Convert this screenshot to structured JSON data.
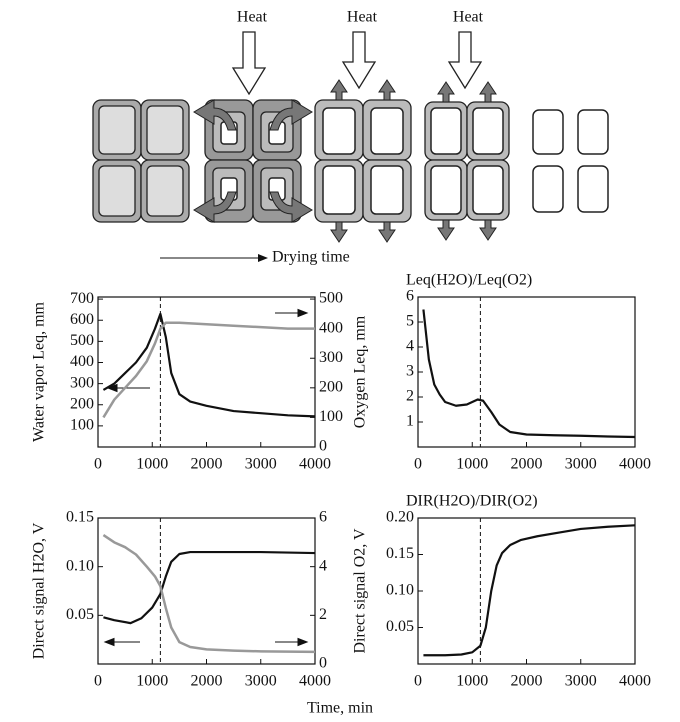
{
  "diagram": {
    "heat_labels": [
      "Heat",
      "Heat",
      "Heat"
    ],
    "arrow_label": "Drying time"
  },
  "shared_xlabel": "Time, min",
  "chart_data": [
    {
      "type": "line",
      "ylabel": "Water vapor Leq, mm",
      "y2label": "Oxygen Leq, mm",
      "xlim": [
        0,
        4000
      ],
      "xticks": [
        0,
        1000,
        2000,
        3000,
        4000
      ],
      "ylim": [
        0,
        710
      ],
      "yticks": [
        100,
        200,
        300,
        400,
        500,
        600,
        700
      ],
      "y2lim": [
        0,
        507
      ],
      "y2ticks": [
        0,
        100,
        200,
        300,
        400,
        500
      ],
      "vline": 1150,
      "series": [
        {
          "color": "#111111",
          "x": [
            100,
            300,
            500,
            700,
            900,
            1050,
            1150,
            1250,
            1350,
            1500,
            1700,
            2000,
            2500,
            3000,
            3500,
            4000
          ],
          "values": [
            270,
            300,
            350,
            400,
            470,
            560,
            630,
            520,
            350,
            250,
            215,
            195,
            170,
            160,
            150,
            145
          ]
        },
        {
          "color": "#999999",
          "axis": "y2",
          "x": [
            100,
            300,
            500,
            700,
            900,
            1050,
            1150,
            1250,
            1500,
            2000,
            2500,
            3000,
            3500,
            4000
          ],
          "values": [
            100,
            160,
            200,
            240,
            290,
            350,
            400,
            420,
            420,
            415,
            410,
            405,
            400,
            400
          ]
        }
      ]
    },
    {
      "type": "line",
      "title": "Leq(H2O)/Leq(O2)",
      "xlim": [
        0,
        4000
      ],
      "xticks": [
        0,
        1000,
        2000,
        3000,
        4000
      ],
      "ylim": [
        0,
        6
      ],
      "yticks": [
        1,
        2,
        3,
        4,
        5,
        6
      ],
      "vline": 1150,
      "series": [
        {
          "color": "#111111",
          "x": [
            100,
            200,
            300,
            400,
            500,
            700,
            900,
            1100,
            1200,
            1350,
            1500,
            1700,
            2000,
            2500,
            3000,
            3500,
            4000
          ],
          "values": [
            5.5,
            3.5,
            2.5,
            2.1,
            1.8,
            1.65,
            1.7,
            1.9,
            1.85,
            1.4,
            0.9,
            0.6,
            0.5,
            0.47,
            0.45,
            0.42,
            0.4
          ]
        }
      ]
    },
    {
      "type": "line",
      "ylabel": "Direct signal H2O, V",
      "y2label": "Direct signal O2, V",
      "xlim": [
        0,
        4000
      ],
      "xticks": [
        0,
        1000,
        2000,
        3000,
        4000
      ],
      "ylim": [
        0,
        0.15
      ],
      "yticks": [
        {
          "value": 0.05,
          "label": "0.05"
        },
        {
          "value": 0.1,
          "label": "0.10"
        },
        {
          "value": 0.15,
          "label": "0.15"
        }
      ],
      "y2lim": [
        0,
        6
      ],
      "y2ticks": [
        0,
        2,
        4,
        6
      ],
      "vline": 1150,
      "series": [
        {
          "color": "#111111",
          "x": [
            100,
            300,
            600,
            800,
            1000,
            1150,
            1250,
            1350,
            1500,
            1700,
            2000,
            3000,
            4000
          ],
          "values": [
            0.048,
            0.045,
            0.042,
            0.047,
            0.058,
            0.072,
            0.09,
            0.105,
            0.113,
            0.115,
            0.115,
            0.115,
            0.114
          ]
        },
        {
          "color": "#999999",
          "axis": "y2",
          "x": [
            100,
            300,
            500,
            700,
            900,
            1050,
            1150,
            1250,
            1350,
            1500,
            1700,
            2000,
            2500,
            3000,
            4000
          ],
          "values": [
            5.3,
            5.0,
            4.8,
            4.5,
            4.0,
            3.6,
            3.2,
            2.3,
            1.5,
            0.9,
            0.7,
            0.6,
            0.55,
            0.52,
            0.5
          ]
        }
      ]
    },
    {
      "type": "line",
      "title": "DIR(H2O)/DIR(O2)",
      "xlim": [
        0,
        4000
      ],
      "xticks": [
        0,
        1000,
        2000,
        3000,
        4000
      ],
      "ylim": [
        0,
        0.2
      ],
      "yticks": [
        {
          "value": 0.05,
          "label": "0.05"
        },
        {
          "value": 0.1,
          "label": "0.10"
        },
        {
          "value": 0.15,
          "label": "0.15"
        },
        {
          "value": 0.2,
          "label": "0.20"
        }
      ],
      "vline": 1150,
      "series": [
        {
          "color": "#111111",
          "x": [
            100,
            500,
            800,
            1000,
            1150,
            1250,
            1350,
            1450,
            1550,
            1700,
            1900,
            2200,
            2600,
            3000,
            3500,
            4000
          ],
          "values": [
            0.012,
            0.012,
            0.013,
            0.016,
            0.025,
            0.05,
            0.1,
            0.135,
            0.152,
            0.163,
            0.17,
            0.175,
            0.18,
            0.185,
            0.188,
            0.19
          ]
        }
      ]
    }
  ]
}
